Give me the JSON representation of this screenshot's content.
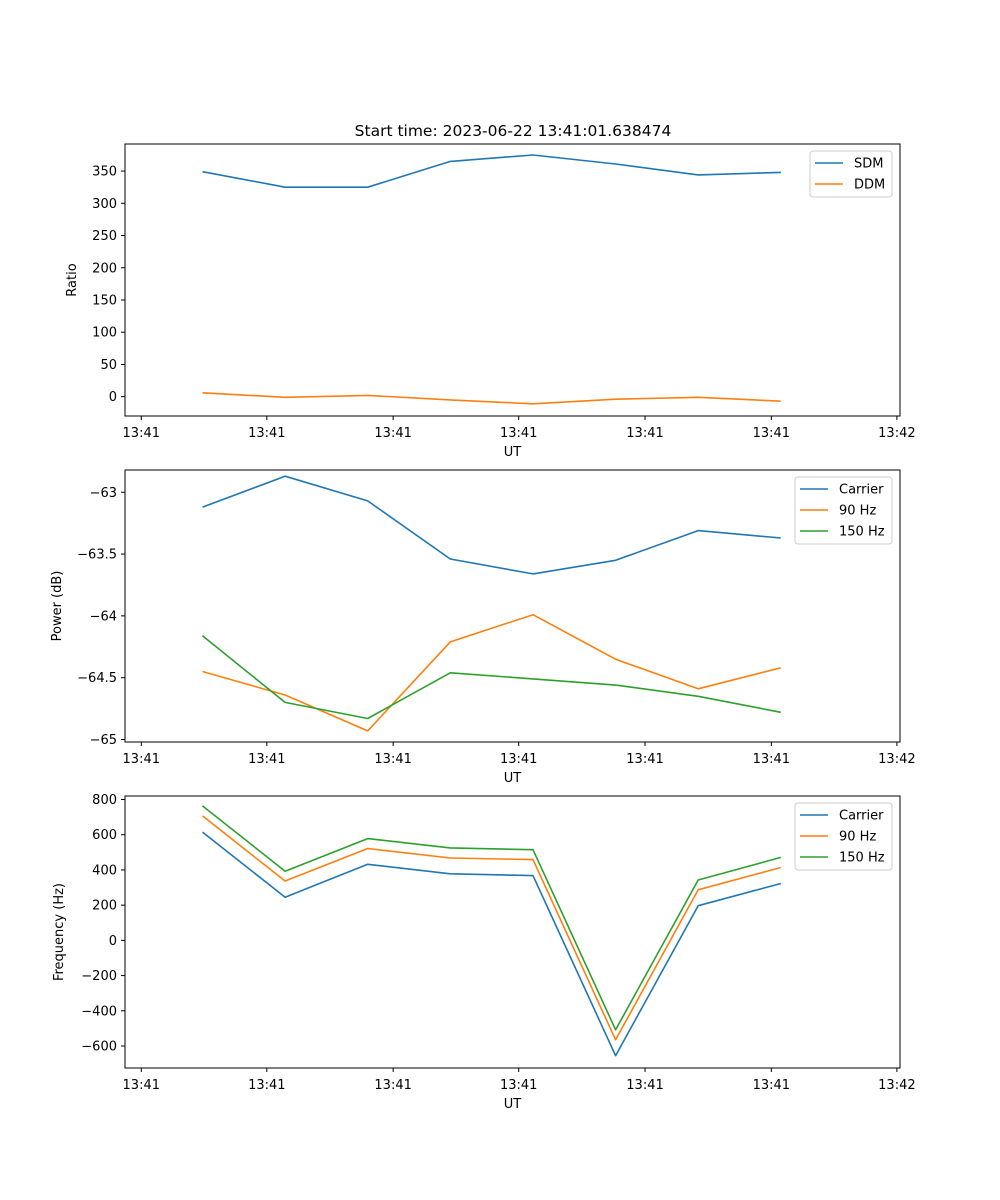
{
  "title": "Start time: 2023-06-22 13:41:01.638474",
  "x_tick_labels": [
    "13:41",
    "13:41",
    "13:41",
    "13:41",
    "13:41",
    "13:41",
    "13:42"
  ],
  "colors": {
    "blue": "#1f77b4",
    "orange": "#ff7f0e",
    "green": "#2ca02c"
  },
  "chart_data": [
    {
      "type": "line",
      "title": "Start time: 2023-06-22 13:41:01.638474",
      "xlabel": "UT",
      "ylabel": "Ratio",
      "ylim": [
        -30,
        392
      ],
      "yticks": [
        0,
        50,
        100,
        150,
        200,
        250,
        300,
        350
      ],
      "legend": "top-right",
      "grid": false,
      "series": [
        {
          "name": "SDM",
          "color": "#1f77b4",
          "values": [
            349,
            325,
            325,
            365,
            375,
            361,
            344,
            348
          ]
        },
        {
          "name": "DDM",
          "color": "#ff7f0e",
          "values": [
            6,
            -1,
            2,
            -5,
            -11,
            -4,
            -1,
            -7
          ]
        }
      ]
    },
    {
      "type": "line",
      "title": "",
      "xlabel": "UT",
      "ylabel": "Power (dB)",
      "ylim": [
        -65.02,
        -62.82
      ],
      "yticks": [
        -65.0,
        -64.5,
        -64.0,
        -63.5,
        -63.0
      ],
      "legend": "top-right",
      "grid": false,
      "series": [
        {
          "name": "Carrier",
          "color": "#1f77b4",
          "values": [
            -63.12,
            -62.87,
            -63.07,
            -63.54,
            -63.66,
            -63.55,
            -63.31,
            -63.37
          ]
        },
        {
          "name": "90 Hz",
          "color": "#ff7f0e",
          "values": [
            -64.45,
            -64.64,
            -64.93,
            -64.21,
            -63.99,
            -64.35,
            -64.59,
            -64.42
          ]
        },
        {
          "name": "150 Hz",
          "color": "#2ca02c",
          "values": [
            -64.16,
            -64.7,
            -64.83,
            -64.46,
            -64.51,
            -64.56,
            -64.65,
            -64.78
          ]
        }
      ]
    },
    {
      "type": "line",
      "title": "",
      "xlabel": "UT",
      "ylabel": "Frequency (Hz)",
      "ylim": [
        -725,
        820
      ],
      "yticks": [
        -600,
        -400,
        -200,
        0,
        200,
        400,
        600,
        800
      ],
      "legend": "top-right",
      "grid": false,
      "series": [
        {
          "name": "Carrier",
          "color": "#1f77b4",
          "values": [
            615,
            245,
            432,
            378,
            368,
            -655,
            197,
            323
          ]
        },
        {
          "name": "90 Hz",
          "color": "#ff7f0e",
          "values": [
            707,
            337,
            522,
            468,
            459,
            -565,
            287,
            414
          ]
        },
        {
          "name": "150 Hz",
          "color": "#2ca02c",
          "values": [
            764,
            393,
            578,
            525,
            515,
            -508,
            343,
            471
          ]
        }
      ]
    }
  ]
}
